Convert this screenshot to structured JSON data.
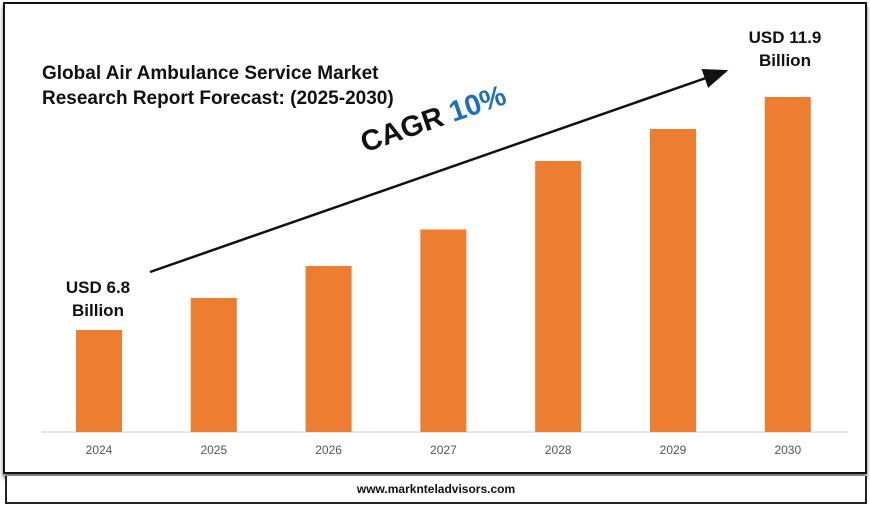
{
  "chart_data": {
    "type": "bar",
    "title": "Global Air Ambulance Service Market Research Report Forecast: (2025-2030)",
    "categories": [
      "2024",
      "2025",
      "2026",
      "2027",
      "2028",
      "2029",
      "2030"
    ],
    "values": [
      6.8,
      7.5,
      8.2,
      9.0,
      10.5,
      11.2,
      11.9
    ],
    "unit": "USD Billion",
    "bar_color": "#ED7D31",
    "annotations": {
      "start_label_line1": "USD 6.8",
      "start_label_line2": "Billion",
      "end_label_line1": "USD 11.9",
      "end_label_line2": "Billion",
      "cagr_prefix": "CAGR",
      "cagr_value": "10%"
    },
    "grid": false,
    "legend": "none"
  },
  "footer": {
    "website": "www.marknteladvisors.com"
  }
}
